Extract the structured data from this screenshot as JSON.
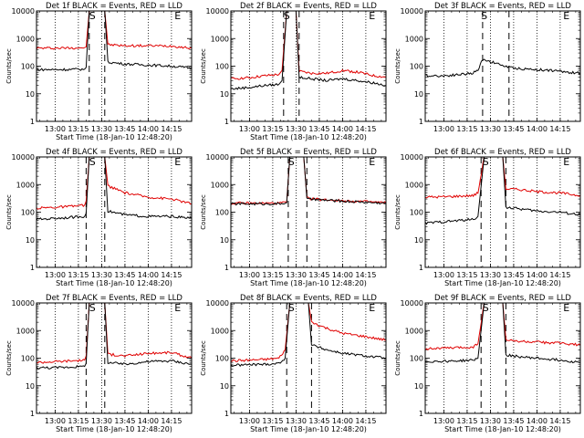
{
  "colors": {
    "events": "#000000",
    "lld": "#e00000",
    "frame": "#000000"
  },
  "chart_data": [
    {
      "type": "line",
      "title": "Det 1f BLACK = Events, RED = LLD",
      "xlabel": "Start Time (18-Jan-10 12:48:20)",
      "ylabel": "Counts/sec",
      "yscale": "log",
      "ylim": [
        1,
        10000
      ],
      "xlim": [
        "12:48",
        "14:28"
      ],
      "xticks": [
        "13:00",
        "13:15",
        "13:30",
        "13:45",
        "14:00",
        "14:15"
      ],
      "yticks": [
        "1",
        "10",
        "100",
        "1000",
        "10000"
      ],
      "markers": [
        {
          "label": "S",
          "time": "13:24"
        },
        {
          "label": "E",
          "time": "14:19"
        }
      ],
      "event_lines": [
        "13:22",
        "13:32"
      ],
      "series": [
        {
          "name": "Events",
          "x": [
            "12:48",
            "13:00",
            "13:10",
            "13:19",
            "13:20",
            "13:22",
            "13:32",
            "13:34",
            "13:45",
            "14:00",
            "14:15",
            "14:28"
          ],
          "values": [
            75,
            75,
            76,
            78,
            90,
            10000,
            10000,
            140,
            120,
            110,
            100,
            85
          ]
        },
        {
          "name": "LLD",
          "x": [
            "12:48",
            "13:00",
            "13:10",
            "13:19",
            "13:20",
            "13:22",
            "13:32",
            "13:34",
            "13:45",
            "14:00",
            "14:15",
            "14:28"
          ],
          "values": [
            450,
            450,
            460,
            470,
            500,
            10000,
            10000,
            600,
            550,
            550,
            540,
            450
          ]
        }
      ]
    },
    {
      "type": "line",
      "title": "Det 2f BLACK = Events, RED = LLD",
      "xlabel": "Start Time (18-Jan-10 12:48:20)",
      "ylabel": "Counts/sec",
      "yscale": "log",
      "ylim": [
        1,
        10000
      ],
      "xlim": [
        "12:48",
        "14:28"
      ],
      "xticks": [
        "13:00",
        "13:15",
        "13:30",
        "13:45",
        "14:00",
        "14:15"
      ],
      "yticks": [
        "1",
        "10",
        "100",
        "1000",
        "10000"
      ],
      "markers": [
        {
          "label": "S",
          "time": "13:24"
        },
        {
          "label": "E",
          "time": "14:19"
        }
      ],
      "event_lines": [
        "13:22",
        "13:32"
      ],
      "series": [
        {
          "name": "Events",
          "x": [
            "12:48",
            "13:00",
            "13:10",
            "13:19",
            "13:21",
            "13:24",
            "13:30",
            "13:32",
            "13:40",
            "13:50",
            "14:00",
            "14:10",
            "14:20",
            "14:28"
          ],
          "values": [
            15,
            17,
            20,
            22,
            30,
            10000,
            10000,
            40,
            35,
            30,
            35,
            30,
            25,
            20
          ]
        },
        {
          "name": "LLD",
          "x": [
            "12:48",
            "13:00",
            "13:10",
            "13:19",
            "13:21",
            "13:24",
            "13:30",
            "13:32",
            "13:40",
            "13:50",
            "14:00",
            "14:10",
            "14:20",
            "14:28"
          ],
          "values": [
            35,
            38,
            45,
            50,
            70,
            10000,
            10000,
            65,
            55,
            55,
            70,
            60,
            45,
            40
          ]
        }
      ]
    },
    {
      "type": "line",
      "title": "Det 3f BLACK = Events, RED = LLD",
      "xlabel": "",
      "ylabel": "Counts/sec",
      "yscale": "log",
      "ylim": [
        1,
        10000
      ],
      "xlim": [
        "12:48",
        "14:28"
      ],
      "xticks": [
        "13:00",
        "13:15",
        "13:30",
        "13:45",
        "14:00",
        "14:15"
      ],
      "yticks": [
        "1",
        "10",
        "100",
        "1000",
        "10000"
      ],
      "markers": [
        {
          "label": "S",
          "time": "13:26"
        },
        {
          "label": "E",
          "time": "14:19"
        }
      ],
      "event_lines": [
        "13:25",
        "13:42"
      ],
      "series": [
        {
          "name": "Events",
          "x": [
            "12:48",
            "13:00",
            "13:10",
            "13:18",
            "13:22",
            "13:25",
            "13:42",
            "13:50",
            "14:00",
            "14:10",
            "14:20",
            "14:28"
          ],
          "values": [
            45,
            45,
            50,
            55,
            70,
            180,
            90,
            80,
            75,
            70,
            60,
            55
          ]
        }
      ]
    },
    {
      "type": "line",
      "title": "Det 4f BLACK = Events, RED = LLD",
      "xlabel": "Start Time (18-Jan-10 12:48:20)",
      "ylabel": "Counts/sec",
      "yscale": "log",
      "ylim": [
        1,
        10000
      ],
      "xlim": [
        "12:48",
        "14:28"
      ],
      "xticks": [
        "13:00",
        "13:15",
        "13:30",
        "13:45",
        "14:00",
        "14:15"
      ],
      "yticks": [
        "1",
        "10",
        "100",
        "1000",
        "10000"
      ],
      "markers": [
        {
          "label": "S",
          "time": "13:24"
        },
        {
          "label": "E",
          "time": "14:19"
        }
      ],
      "event_lines": [
        "13:20",
        "13:32"
      ],
      "series": [
        {
          "name": "Events",
          "x": [
            "12:48",
            "13:00",
            "13:10",
            "13:19",
            "13:20",
            "13:22",
            "13:32",
            "13:34",
            "13:45",
            "14:00",
            "14:15",
            "14:28"
          ],
          "values": [
            55,
            60,
            65,
            70,
            90,
            10000,
            10000,
            110,
            80,
            70,
            70,
            60
          ]
        },
        {
          "name": "LLD",
          "x": [
            "12:48",
            "13:00",
            "13:10",
            "13:19",
            "13:20",
            "13:22",
            "13:32",
            "13:34",
            "13:45",
            "14:00",
            "14:15",
            "14:28"
          ],
          "values": [
            140,
            150,
            160,
            180,
            250,
            10000,
            10000,
            900,
            500,
            350,
            300,
            200
          ]
        }
      ]
    },
    {
      "type": "line",
      "title": "Det 5f BLACK = Events, RED = LLD",
      "xlabel": "Start Time (18-Jan-10 12:48:20)",
      "ylabel": "Counts/sec",
      "yscale": "log",
      "ylim": [
        1,
        10000
      ],
      "xlim": [
        "12:48",
        "14:28"
      ],
      "xticks": [
        "13:00",
        "13:15",
        "13:30",
        "13:45",
        "14:00",
        "14:15"
      ],
      "yticks": [
        "1",
        "10",
        "100",
        "1000",
        "10000"
      ],
      "markers": [
        {
          "label": "S",
          "time": "13:27"
        },
        {
          "label": "E",
          "time": "14:19"
        }
      ],
      "event_lines": [
        "13:25",
        "13:37"
      ],
      "series": [
        {
          "name": "Events",
          "x": [
            "12:48",
            "13:00",
            "13:10",
            "13:19",
            "13:24",
            "13:26",
            "13:35",
            "13:37",
            "13:45",
            "14:00",
            "14:15",
            "14:28"
          ],
          "values": [
            200,
            200,
            200,
            200,
            220,
            10000,
            10000,
            300,
            280,
            250,
            230,
            210
          ]
        },
        {
          "name": "LLD",
          "x": [
            "12:48",
            "13:00",
            "13:10",
            "13:19",
            "13:24",
            "13:26",
            "13:35",
            "13:37",
            "13:45",
            "14:00",
            "14:15",
            "14:28"
          ],
          "values": [
            210,
            210,
            210,
            210,
            230,
            10000,
            10000,
            320,
            290,
            260,
            240,
            220
          ]
        }
      ]
    },
    {
      "type": "line",
      "title": "Det 6f BLACK = Events, RED = LLD",
      "xlabel": "Start Time (18-Jan-10 12:48:20)",
      "ylabel": "Counts/sec",
      "yscale": "log",
      "ylim": [
        1,
        10000
      ],
      "xlim": [
        "12:48",
        "14:28"
      ],
      "xticks": [
        "13:00",
        "13:15",
        "13:30",
        "13:45",
        "14:00",
        "14:15"
      ],
      "yticks": [
        "1",
        "10",
        "100",
        "1000",
        "10000"
      ],
      "markers": [
        {
          "label": "S",
          "time": "13:27"
        },
        {
          "label": "E",
          "time": "14:19"
        }
      ],
      "event_lines": [
        "13:24",
        "13:40"
      ],
      "series": [
        {
          "name": "Events",
          "x": [
            "12:48",
            "13:00",
            "13:10",
            "13:19",
            "13:22",
            "13:26",
            "13:38",
            "13:40",
            "13:50",
            "14:00",
            "14:15",
            "14:28"
          ],
          "values": [
            40,
            45,
            50,
            55,
            70,
            10000,
            10000,
            150,
            130,
            110,
            100,
            80
          ]
        },
        {
          "name": "LLD",
          "x": [
            "12:48",
            "13:00",
            "13:10",
            "13:19",
            "13:22",
            "13:26",
            "13:38",
            "13:40",
            "13:50",
            "14:00",
            "14:15",
            "14:28"
          ],
          "values": [
            350,
            360,
            380,
            400,
            500,
            10000,
            10000,
            700,
            650,
            550,
            500,
            400
          ]
        }
      ]
    },
    {
      "type": "line",
      "title": "Det 7f BLACK = Events, RED = LLD",
      "xlabel": "Start Time (18-Jan-10 12:48:20)",
      "ylabel": "Counts/sec",
      "yscale": "log",
      "ylim": [
        1,
        10000
      ],
      "xlim": [
        "12:48",
        "14:28"
      ],
      "xticks": [
        "13:00",
        "13:15",
        "13:30",
        "13:45",
        "14:00",
        "14:15"
      ],
      "yticks": [
        "1",
        "10",
        "100",
        "1000",
        "10000"
      ],
      "markers": [
        {
          "label": "S",
          "time": "13:24"
        },
        {
          "label": "E",
          "time": "14:19"
        }
      ],
      "event_lines": [
        "13:20",
        "13:32"
      ],
      "series": [
        {
          "name": "Events",
          "x": [
            "12:48",
            "13:00",
            "13:10",
            "13:19",
            "13:20",
            "13:22",
            "13:32",
            "13:34",
            "13:45",
            "14:00",
            "14:15",
            "14:28"
          ],
          "values": [
            45,
            45,
            48,
            50,
            65,
            10000,
            10000,
            70,
            60,
            75,
            80,
            60
          ]
        },
        {
          "name": "LLD",
          "x": [
            "12:48",
            "13:00",
            "13:10",
            "13:19",
            "13:20",
            "13:22",
            "13:32",
            "13:34",
            "13:45",
            "14:00",
            "14:15",
            "14:28"
          ],
          "values": [
            70,
            75,
            80,
            85,
            120,
            10000,
            10000,
            140,
            120,
            150,
            160,
            100
          ]
        }
      ]
    },
    {
      "type": "line",
      "title": "Det 8f BLACK = Events, RED = LLD",
      "xlabel": "Start Time (18-Jan-10 12:48:20)",
      "ylabel": "Counts/sec",
      "yscale": "log",
      "ylim": [
        1,
        10000
      ],
      "xlim": [
        "12:48",
        "14:28"
      ],
      "xticks": [
        "13:00",
        "13:15",
        "13:30",
        "13:45",
        "14:00",
        "14:15"
      ],
      "yticks": [
        "1",
        "10",
        "100",
        "1000",
        "10000"
      ],
      "markers": [
        {
          "label": "S",
          "time": "13:27"
        },
        {
          "label": "E",
          "time": "14:19"
        }
      ],
      "event_lines": [
        "13:24",
        "13:40"
      ],
      "series": [
        {
          "name": "Events",
          "x": [
            "12:48",
            "13:00",
            "13:10",
            "13:19",
            "13:23",
            "13:26",
            "13:38",
            "13:40",
            "13:50",
            "14:00",
            "14:15",
            "14:28"
          ],
          "values": [
            55,
            58,
            60,
            65,
            100,
            10000,
            10000,
            300,
            200,
            150,
            120,
            100
          ]
        },
        {
          "name": "LLD",
          "x": [
            "12:48",
            "13:00",
            "13:10",
            "13:19",
            "13:23",
            "13:26",
            "13:38",
            "13:40",
            "13:50",
            "14:00",
            "14:15",
            "14:28"
          ],
          "values": [
            80,
            85,
            90,
            100,
            200,
            10000,
            10000,
            2000,
            1200,
            800,
            600,
            450
          ]
        }
      ]
    },
    {
      "type": "line",
      "title": "Det 9f BLACK = Events, RED = LLD",
      "xlabel": "Start Time (18-Jan-10 12:48:20)",
      "ylabel": "Counts/sec",
      "yscale": "log",
      "ylim": [
        1,
        10000
      ],
      "xlim": [
        "12:48",
        "14:28"
      ],
      "xticks": [
        "13:00",
        "13:15",
        "13:30",
        "13:45",
        "14:00",
        "14:15"
      ],
      "yticks": [
        "1",
        "10",
        "100",
        "1000",
        "10000"
      ],
      "markers": [
        {
          "label": "S",
          "time": "13:27"
        },
        {
          "label": "E",
          "time": "14:19"
        }
      ],
      "event_lines": [
        "13:24",
        "13:40"
      ],
      "series": [
        {
          "name": "Events",
          "x": [
            "12:48",
            "13:00",
            "13:10",
            "13:19",
            "13:22",
            "13:26",
            "13:38",
            "13:40",
            "13:50",
            "14:00",
            "14:15",
            "14:28"
          ],
          "values": [
            75,
            78,
            80,
            85,
            100,
            10000,
            10000,
            130,
            110,
            100,
            85,
            70
          ]
        },
        {
          "name": "LLD",
          "x": [
            "12:48",
            "13:00",
            "13:10",
            "13:19",
            "13:22",
            "13:26",
            "13:38",
            "13:40",
            "13:50",
            "14:00",
            "14:15",
            "14:28"
          ],
          "values": [
            220,
            230,
            240,
            250,
            350,
            10000,
            10000,
            450,
            400,
            380,
            350,
            300
          ]
        }
      ]
    }
  ]
}
